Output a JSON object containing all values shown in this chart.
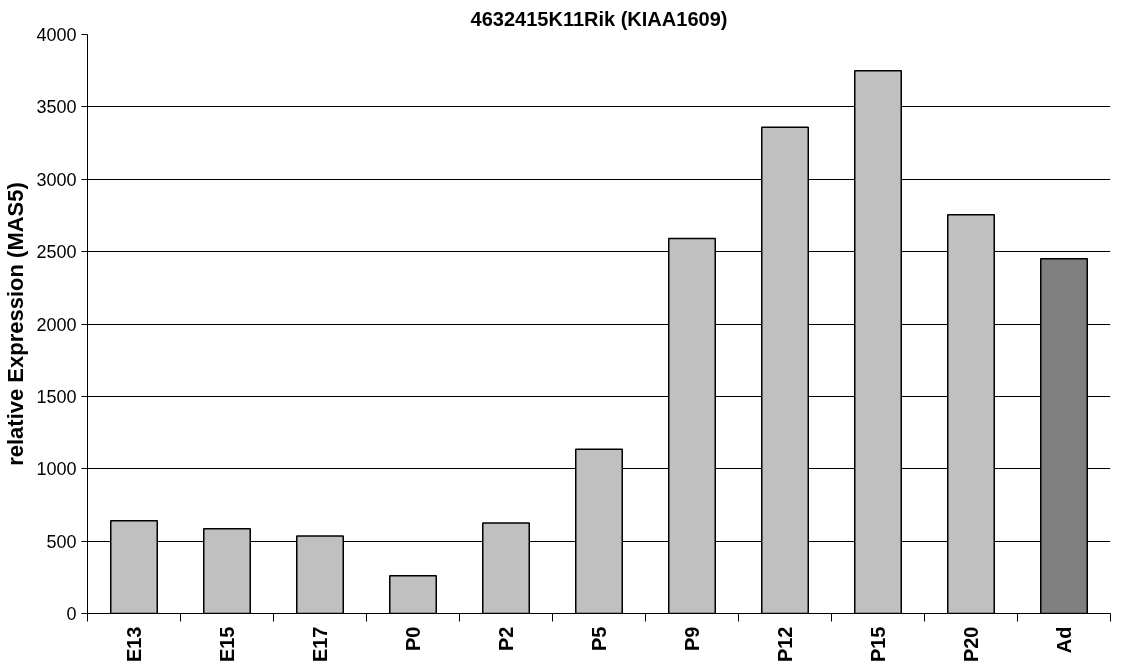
{
  "chart_data": {
    "type": "bar",
    "title": "4632415K11Rik (KIAA1609)",
    "ylabel": "relative Expression (MAS5)",
    "categories": [
      "E13",
      "E15",
      "E17",
      "P0",
      "P2",
      "P5",
      "P9",
      "P12",
      "P15",
      "P20",
      "Ad"
    ],
    "values": [
      640,
      585,
      535,
      260,
      625,
      1135,
      2590,
      3360,
      3750,
      2755,
      2450
    ],
    "colors": [
      "#c0c0c0",
      "#c0c0c0",
      "#c0c0c0",
      "#c0c0c0",
      "#c0c0c0",
      "#c0c0c0",
      "#c0c0c0",
      "#c0c0c0",
      "#c0c0c0",
      "#c0c0c0",
      "#808080"
    ],
    "ylim": [
      0,
      4000
    ],
    "yticks": [
      0,
      500,
      1000,
      1500,
      2000,
      2500,
      3000,
      3500,
      4000
    ],
    "grid": "y"
  }
}
